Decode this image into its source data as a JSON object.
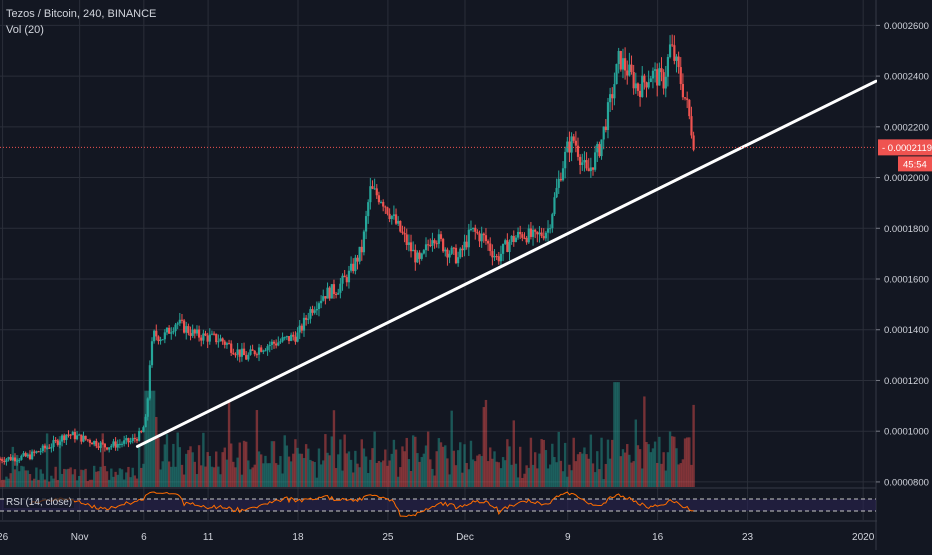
{
  "header": {
    "symbol_title": "Tezos / Bitcoin, 240, BINANCE",
    "volume_indicator": "Vol (20)",
    "rsi_indicator": "RSI (14, close)"
  },
  "price_badge": {
    "price": "0.0002119",
    "countdown": "45:54",
    "color": "#ef5350"
  },
  "colors": {
    "background": "#131722",
    "grid": "#2a2e39",
    "up": "#26a69a",
    "down": "#ef5350",
    "trendline": "#ffffff",
    "rsi_line": "#ff6d00",
    "rsi_band": "#2a2350"
  },
  "chart_data": {
    "type": "candlestick",
    "title": "Tezos / Bitcoin, 240, BINANCE",
    "y_axis": {
      "ticks": [
        "0.0002600",
        "0.0002400",
        "0.0002200",
        "0.0002000",
        "0.0001800",
        "0.0001600",
        "0.0001400",
        "0.0001200",
        "0.0001000",
        "0.0000800"
      ],
      "range": [
        7.8e-05,
        0.00027
      ]
    },
    "x_axis": {
      "ticks": [
        {
          "label": "26",
          "day": -6
        },
        {
          "label": "Nov",
          "day": 0
        },
        {
          "label": "6",
          "day": 5
        },
        {
          "label": "11",
          "day": 10
        },
        {
          "label": "18",
          "day": 17
        },
        {
          "label": "25",
          "day": 24
        },
        {
          "label": "Dec",
          "day": 30
        },
        {
          "label": "9",
          "day": 38
        },
        {
          "label": "16",
          "day": 45
        },
        {
          "label": "23",
          "day": 52
        },
        {
          "label": "2020",
          "day": 61
        }
      ],
      "range": [
        -6.2,
        62
      ]
    },
    "price_path": [
      [
        -6.2,
        8.9e-05
      ],
      [
        -4,
        9e-05
      ],
      [
        -2,
        9.5e-05
      ],
      [
        -1,
        9.9e-05
      ],
      [
        1,
        9.6e-05
      ],
      [
        2,
        9.4e-05
      ],
      [
        3,
        9.5e-05
      ],
      [
        4,
        9.6e-05
      ],
      [
        4.8,
        9.9e-05
      ],
      [
        5.2,
        0.000105
      ],
      [
        5.5,
        0.00013
      ],
      [
        5.8,
        0.000138
      ],
      [
        6.5,
        0.000137
      ],
      [
        7.5,
        0.000143
      ],
      [
        9,
        0.000138
      ],
      [
        11,
        0.000136
      ],
      [
        13,
        0.000129
      ],
      [
        14,
        0.000133
      ],
      [
        16,
        0.000136
      ],
      [
        17,
        0.000138
      ],
      [
        18,
        0.000148
      ],
      [
        19,
        0.000154
      ],
      [
        20,
        0.000156
      ],
      [
        21,
        0.000162
      ],
      [
        22,
        0.000172
      ],
      [
        22.6,
        0.000195
      ],
      [
        23.5,
        0.000192
      ],
      [
        24.5,
        0.000183
      ],
      [
        25.5,
        0.000174
      ],
      [
        26.5,
        0.000166
      ],
      [
        27.5,
        0.000178
      ],
      [
        28.5,
        0.000172
      ],
      [
        29.5,
        0.000168
      ],
      [
        30.5,
        0.000179
      ],
      [
        31.5,
        0.000176
      ],
      [
        32.5,
        0.000168
      ],
      [
        33.5,
        0.000175
      ],
      [
        34.5,
        0.000178
      ],
      [
        35.5,
        0.000176
      ],
      [
        36.5,
        0.00018
      ],
      [
        37,
        0.000192
      ],
      [
        37.5,
        0.000203
      ],
      [
        38,
        0.000212
      ],
      [
        38.5,
        0.000215
      ],
      [
        39.5,
        0.000201
      ],
      [
        40.5,
        0.000212
      ],
      [
        41.5,
        0.000234
      ],
      [
        42,
        0.000247
      ],
      [
        42.8,
        0.000241
      ],
      [
        43.5,
        0.000235
      ],
      [
        44.5,
        0.000241
      ],
      [
        45.5,
        0.000238
      ],
      [
        46,
        0.000252
      ],
      [
        46.6,
        0.000242
      ],
      [
        47.3,
        0.000228
      ],
      [
        47.9,
        0.0002119
      ]
    ],
    "volume_range": [
      0,
      1
    ],
    "trendline": {
      "start": [
        4.5,
        9.4e-05
      ],
      "end": [
        62,
        0.000238
      ]
    },
    "rsi": {
      "upper_band": 70,
      "lower_band": 30,
      "last": 28
    }
  }
}
